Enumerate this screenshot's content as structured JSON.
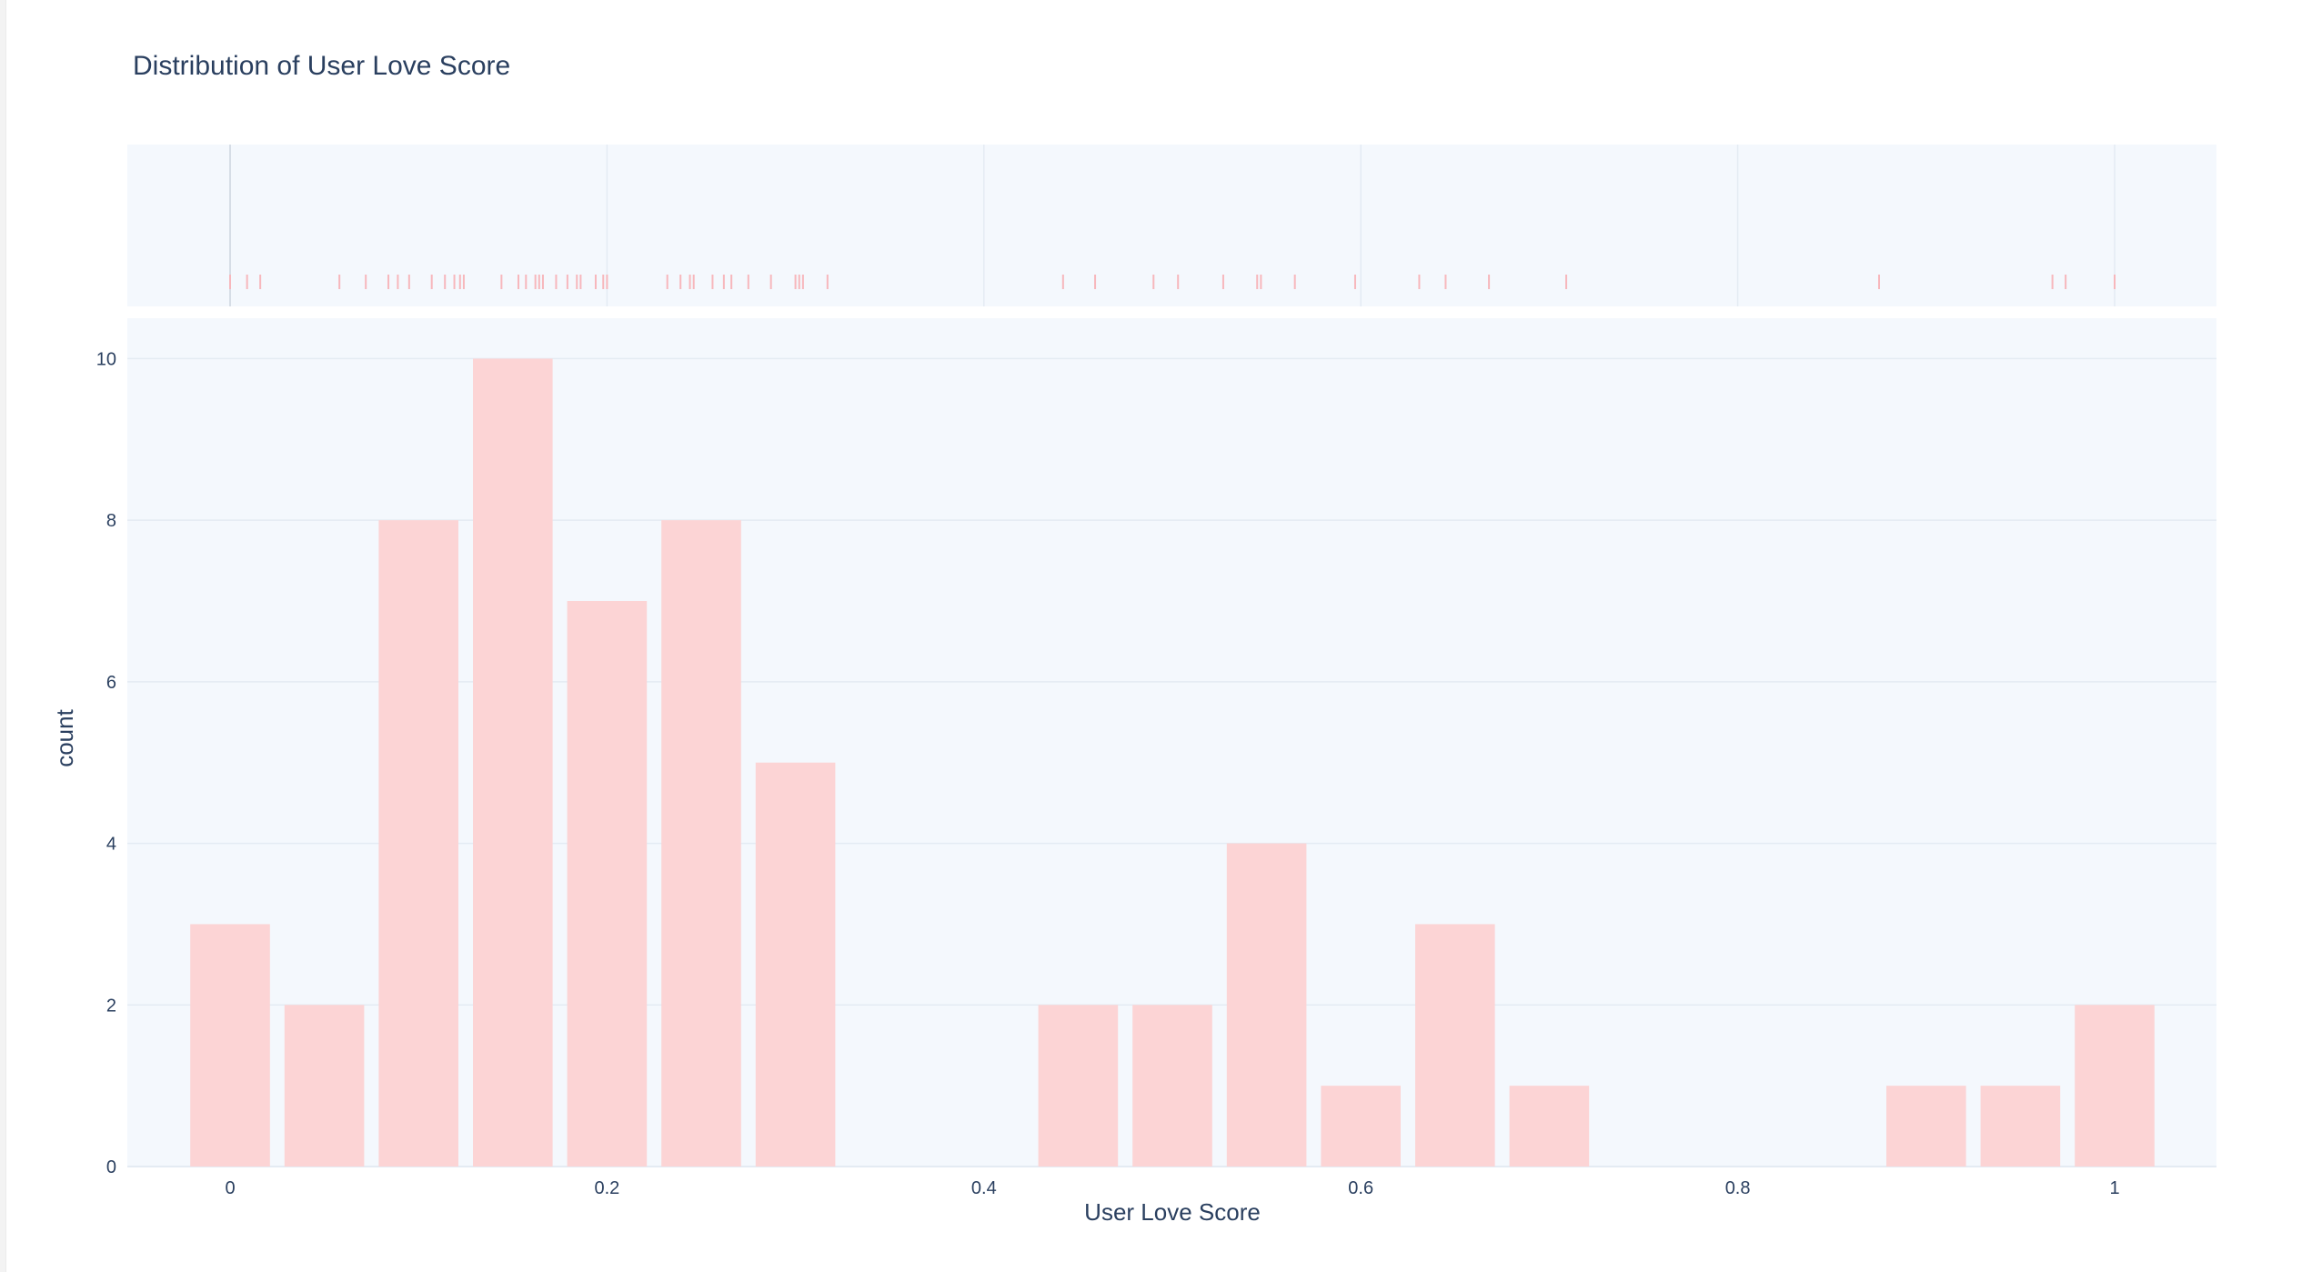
{
  "chart_data": {
    "type": "bar",
    "title": "Distribution of User Love Score",
    "xlabel": "User Love Score",
    "ylabel": "count",
    "bin_width": 0.05,
    "bins": [
      {
        "x": 0.0,
        "count": 3
      },
      {
        "x": 0.05,
        "count": 2
      },
      {
        "x": 0.1,
        "count": 8
      },
      {
        "x": 0.15,
        "count": 10
      },
      {
        "x": 0.2,
        "count": 7
      },
      {
        "x": 0.25,
        "count": 8
      },
      {
        "x": 0.3,
        "count": 5
      },
      {
        "x": 0.35,
        "count": 0
      },
      {
        "x": 0.4,
        "count": 0
      },
      {
        "x": 0.45,
        "count": 2
      },
      {
        "x": 0.5,
        "count": 2
      },
      {
        "x": 0.55,
        "count": 4
      },
      {
        "x": 0.6,
        "count": 1
      },
      {
        "x": 0.65,
        "count": 3
      },
      {
        "x": 0.7,
        "count": 1
      },
      {
        "x": 0.75,
        "count": 0
      },
      {
        "x": 0.8,
        "count": 0
      },
      {
        "x": 0.85,
        "count": 0
      },
      {
        "x": 0.9,
        "count": 1
      },
      {
        "x": 0.95,
        "count": 1
      },
      {
        "x": 1.0,
        "count": 2
      }
    ],
    "rug_values": [
      0.0,
      0.009,
      0.016,
      0.058,
      0.072,
      0.084,
      0.089,
      0.095,
      0.107,
      0.114,
      0.119,
      0.122,
      0.124,
      0.144,
      0.153,
      0.157,
      0.162,
      0.164,
      0.166,
      0.173,
      0.179,
      0.184,
      0.186,
      0.194,
      0.198,
      0.2,
      0.232,
      0.239,
      0.244,
      0.246,
      0.256,
      0.262,
      0.266,
      0.275,
      0.287,
      0.3,
      0.302,
      0.304,
      0.317,
      0.442,
      0.459,
      0.49,
      0.503,
      0.527,
      0.545,
      0.547,
      0.565,
      0.597,
      0.631,
      0.645,
      0.668,
      0.709,
      0.875,
      0.967,
      0.974,
      1.0
    ],
    "xlim": [
      -0.055,
      1.055
    ],
    "ylim": [
      0,
      10.5
    ],
    "x_ticks": [
      0,
      0.2,
      0.4,
      0.6,
      0.8,
      1
    ],
    "x_tick_labels": [
      "0",
      "0.2",
      "0.4",
      "0.6",
      "0.8",
      "1"
    ],
    "y_ticks": [
      0,
      2,
      4,
      6,
      8,
      10
    ],
    "y_tick_labels": [
      "0",
      "2",
      "4",
      "6",
      "8",
      "10"
    ],
    "grid": true,
    "legend": "none",
    "colors": {
      "bar": "#fcd4d5",
      "rug": "#f7b7bc",
      "plot_bg": "#f4f8fd",
      "grid": "#e4ebf3",
      "text": "#2a3f5f"
    }
  }
}
